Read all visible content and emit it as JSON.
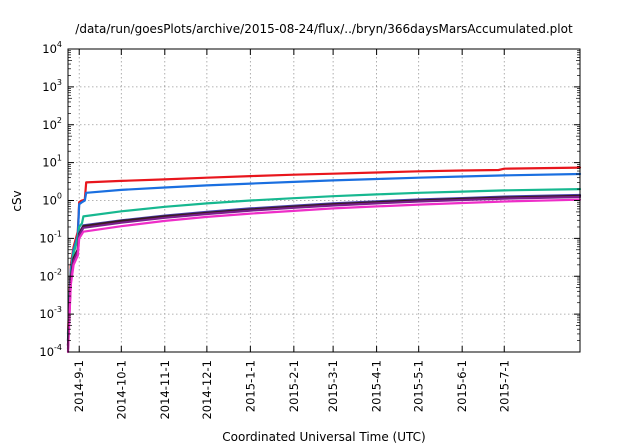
{
  "chart_data": {
    "type": "line",
    "title": "/data/run/goesPlots/archive/2015-08-24/flux/../bryn/366daysMarsAccumulated.plot",
    "xlabel": "Coordinated Universal Time (UTC)",
    "ylabel": "cSv",
    "y_scale": "log",
    "ylim": [
      0.0001,
      10000
    ],
    "xlim": [
      "2014-08-24",
      "2015-08-24"
    ],
    "grid": true,
    "y_ticks": [
      {
        "base": "10",
        "exp": "-4",
        "value": 0.0001
      },
      {
        "base": "10",
        "exp": "-3",
        "value": 0.001
      },
      {
        "base": "10",
        "exp": "-2",
        "value": 0.01
      },
      {
        "base": "10",
        "exp": "-1",
        "value": 0.1
      },
      {
        "base": "10",
        "exp": "0",
        "value": 1
      },
      {
        "base": "10",
        "exp": "1",
        "value": 10
      },
      {
        "base": "10",
        "exp": "2",
        "value": 100
      },
      {
        "base": "10",
        "exp": "3",
        "value": 1000
      },
      {
        "base": "10",
        "exp": "4",
        "value": 10000
      }
    ],
    "x_ticks": [
      {
        "label": "2014-9-1",
        "date": "2014-09-01"
      },
      {
        "label": "2014-10-1",
        "date": "2014-10-01"
      },
      {
        "label": "2014-11-1",
        "date": "2014-11-01"
      },
      {
        "label": "2014-12-1",
        "date": "2014-12-01"
      },
      {
        "label": "2015-1-1",
        "date": "2015-01-01"
      },
      {
        "label": "2015-2-1",
        "date": "2015-02-01"
      },
      {
        "label": "2015-3-1",
        "date": "2015-03-01"
      },
      {
        "label": "2015-4-1",
        "date": "2015-04-01"
      },
      {
        "label": "2015-5-1",
        "date": "2015-05-01"
      },
      {
        "label": "2015-6-1",
        "date": "2015-06-01"
      },
      {
        "label": "2015-7-1",
        "date": "2015-07-01"
      }
    ],
    "series": [
      {
        "color": "#e8161d",
        "points": [
          [
            "2014-08-24",
            0.0003
          ],
          [
            "2014-08-26",
            0.02
          ],
          [
            "2014-08-28",
            0.06
          ],
          [
            "2014-08-31",
            0.15
          ],
          [
            "2014-09-01",
            0.9
          ],
          [
            "2014-09-03",
            1.0
          ],
          [
            "2014-09-05",
            1.05
          ],
          [
            "2014-09-06",
            3.0
          ],
          [
            "2014-10-01",
            3.3
          ],
          [
            "2014-11-01",
            3.6
          ],
          [
            "2014-12-01",
            4.0
          ],
          [
            "2015-01-01",
            4.4
          ],
          [
            "2015-02-01",
            4.8
          ],
          [
            "2015-03-01",
            5.1
          ],
          [
            "2015-04-01",
            5.5
          ],
          [
            "2015-05-01",
            5.9
          ],
          [
            "2015-06-01",
            6.2
          ],
          [
            "2015-06-27",
            6.4
          ],
          [
            "2015-07-01",
            6.9
          ],
          [
            "2015-08-24",
            7.4
          ]
        ]
      },
      {
        "color": "#1a6fe0",
        "points": [
          [
            "2014-08-24",
            0.0002
          ],
          [
            "2014-08-26",
            0.015
          ],
          [
            "2014-08-28",
            0.05
          ],
          [
            "2014-08-31",
            0.12
          ],
          [
            "2014-09-01",
            0.8
          ],
          [
            "2014-09-03",
            0.9
          ],
          [
            "2014-09-05",
            1.0
          ],
          [
            "2014-09-06",
            1.6
          ],
          [
            "2014-10-01",
            1.9
          ],
          [
            "2014-11-01",
            2.2
          ],
          [
            "2014-12-01",
            2.5
          ],
          [
            "2015-01-01",
            2.8
          ],
          [
            "2015-02-01",
            3.1
          ],
          [
            "2015-03-01",
            3.4
          ],
          [
            "2015-04-01",
            3.7
          ],
          [
            "2015-05-01",
            4.0
          ],
          [
            "2015-06-01",
            4.3
          ],
          [
            "2015-07-01",
            4.6
          ],
          [
            "2015-08-24",
            5.0
          ]
        ]
      },
      {
        "color": "#17b890",
        "points": [
          [
            "2014-08-24",
            0.0002
          ],
          [
            "2014-08-26",
            0.012
          ],
          [
            "2014-08-28",
            0.04
          ],
          [
            "2014-08-31",
            0.1
          ],
          [
            "2014-09-01",
            0.2
          ],
          [
            "2014-09-03",
            0.25
          ],
          [
            "2014-09-04",
            0.38
          ],
          [
            "2014-10-01",
            0.52
          ],
          [
            "2014-11-01",
            0.68
          ],
          [
            "2014-12-01",
            0.84
          ],
          [
            "2015-01-01",
            1.0
          ],
          [
            "2015-02-01",
            1.15
          ],
          [
            "2015-03-01",
            1.3
          ],
          [
            "2015-04-01",
            1.45
          ],
          [
            "2015-05-01",
            1.6
          ],
          [
            "2015-06-01",
            1.72
          ],
          [
            "2015-07-01",
            1.85
          ],
          [
            "2015-08-24",
            2.0
          ]
        ]
      },
      {
        "color": "#4a3fae",
        "points": [
          [
            "2014-08-24",
            0.00015
          ],
          [
            "2014-08-26",
            0.01
          ],
          [
            "2014-08-28",
            0.03
          ],
          [
            "2014-08-31",
            0.05
          ],
          [
            "2014-09-01",
            0.14
          ],
          [
            "2014-09-04",
            0.22
          ],
          [
            "2014-10-01",
            0.3
          ],
          [
            "2014-11-01",
            0.4
          ],
          [
            "2014-12-01",
            0.5
          ],
          [
            "2015-01-01",
            0.62
          ],
          [
            "2015-02-01",
            0.73
          ],
          [
            "2015-03-01",
            0.84
          ],
          [
            "2015-04-01",
            0.95
          ],
          [
            "2015-05-01",
            1.06
          ],
          [
            "2015-06-01",
            1.16
          ],
          [
            "2015-07-01",
            1.27
          ],
          [
            "2015-08-24",
            1.4
          ]
        ]
      },
      {
        "color": "#3b1a20",
        "points": [
          [
            "2014-08-24",
            0.00015
          ],
          [
            "2014-08-26",
            0.009
          ],
          [
            "2014-08-28",
            0.03
          ],
          [
            "2014-08-31",
            0.05
          ],
          [
            "2014-09-01",
            0.13
          ],
          [
            "2014-09-04",
            0.21
          ],
          [
            "2014-10-01",
            0.29
          ],
          [
            "2014-11-01",
            0.38
          ],
          [
            "2014-12-01",
            0.47
          ],
          [
            "2015-01-01",
            0.58
          ],
          [
            "2015-02-01",
            0.69
          ],
          [
            "2015-03-01",
            0.8
          ],
          [
            "2015-04-01",
            0.9
          ],
          [
            "2015-05-01",
            1.0
          ],
          [
            "2015-06-01",
            1.1
          ],
          [
            "2015-07-01",
            1.2
          ],
          [
            "2015-08-24",
            1.32
          ]
        ]
      },
      {
        "color": "#7a1e8c",
        "points": [
          [
            "2014-08-24",
            0.00012
          ],
          [
            "2014-08-26",
            0.008
          ],
          [
            "2014-08-28",
            0.025
          ],
          [
            "2014-08-31",
            0.045
          ],
          [
            "2014-09-01",
            0.12
          ],
          [
            "2014-09-04",
            0.19
          ],
          [
            "2014-10-01",
            0.26
          ],
          [
            "2014-11-01",
            0.35
          ],
          [
            "2014-12-01",
            0.44
          ],
          [
            "2015-01-01",
            0.54
          ],
          [
            "2015-02-01",
            0.64
          ],
          [
            "2015-03-01",
            0.74
          ],
          [
            "2015-04-01",
            0.84
          ],
          [
            "2015-05-01",
            0.94
          ],
          [
            "2015-06-01",
            1.03
          ],
          [
            "2015-07-01",
            1.12
          ],
          [
            "2015-08-24",
            1.24
          ]
        ]
      },
      {
        "color": "#ee2ec8",
        "points": [
          [
            "2014-08-24",
            0.0001
          ],
          [
            "2014-08-26",
            0.006
          ],
          [
            "2014-08-28",
            0.02
          ],
          [
            "2014-08-31",
            0.035
          ],
          [
            "2014-09-01",
            0.1
          ],
          [
            "2014-09-04",
            0.15
          ],
          [
            "2014-10-01",
            0.21
          ],
          [
            "2014-11-01",
            0.29
          ],
          [
            "2014-12-01",
            0.37
          ],
          [
            "2015-01-01",
            0.45
          ],
          [
            "2015-02-01",
            0.53
          ],
          [
            "2015-03-01",
            0.62
          ],
          [
            "2015-04-01",
            0.7
          ],
          [
            "2015-05-01",
            0.78
          ],
          [
            "2015-06-01",
            0.86
          ],
          [
            "2015-07-01",
            0.94
          ],
          [
            "2015-08-24",
            1.05
          ]
        ]
      }
    ]
  }
}
